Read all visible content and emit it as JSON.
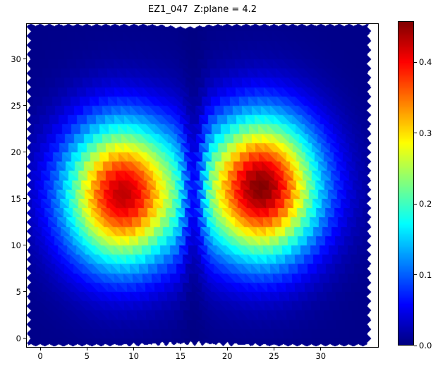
{
  "title": "EZ1_047  Z:plane = 4.2",
  "chart_data": {
    "type": "heatmap",
    "title": "EZ1_047  Z:plane = 4.2",
    "colormap": "jet",
    "mesh_style": "triangulated-flat-shading",
    "vmin": 0.0,
    "vmax": 0.458,
    "xlim": [
      -1.51,
      36.2
    ],
    "ylim": [
      -0.99,
      33.86
    ],
    "xticks": [
      0,
      5,
      10,
      15,
      20,
      25,
      30
    ],
    "yticks": [
      0,
      5,
      10,
      15,
      20,
      25,
      30
    ],
    "grid": false,
    "colorbar": {
      "position": "right",
      "tick_values": [
        0.0,
        0.1,
        0.2,
        0.3,
        0.4
      ],
      "tick_labels": [
        "0.0",
        "0.1",
        "0.2",
        "0.3",
        "0.4"
      ]
    },
    "colors": {
      "low": "#000080",
      "high": "#7f0000",
      "background": "#ffffff"
    },
    "data_region": {
      "x": [
        -1.45,
        35.4
      ],
      "y": [
        -0.87,
        33.82
      ],
      "edge_jag_x": 0.45,
      "edge_jag_y": 0.25,
      "facet_cell": 1.0,
      "facet_shear": 0.35
    },
    "model": {
      "floor": 0.004,
      "blobs": [
        {
          "cx": 8.8,
          "cy": 15.5,
          "sx": 6.0,
          "sy": 7.5,
          "amp": 0.425
        },
        {
          "cx": 23.6,
          "cy": 16.2,
          "sx": 6.0,
          "sy": 7.5,
          "amp": 0.452
        }
      ],
      "seam": {
        "x": 16.4,
        "width": 1.25,
        "depth": 0.7
      }
    },
    "sample_grid": {
      "x": [
        0,
        4,
        8,
        12,
        16,
        20,
        24,
        28,
        32
      ],
      "y": [
        32,
        28,
        24,
        20,
        16,
        12,
        8,
        4,
        0
      ],
      "values": [
        [
          0.004,
          0.006,
          0.007,
          0.007,
          0.005,
          0.008,
          0.009,
          0.007,
          0.005
        ],
        [
          0.007,
          0.018,
          0.03,
          0.025,
          0.009,
          0.031,
          0.042,
          0.026,
          0.009
        ],
        [
          0.018,
          0.066,
          0.12,
          0.096,
          0.026,
          0.115,
          0.157,
          0.094,
          0.026
        ],
        [
          0.038,
          0.16,
          0.295,
          0.236,
          0.056,
          0.257,
          0.352,
          0.208,
          0.053
        ],
        [
          0.053,
          0.227,
          0.42,
          0.333,
          0.074,
          0.332,
          0.454,
          0.268,
          0.068
        ],
        [
          0.044,
          0.184,
          0.34,
          0.269,
          0.058,
          0.245,
          0.333,
          0.197,
          0.051
        ],
        [
          0.022,
          0.086,
          0.158,
          0.125,
          0.028,
          0.104,
          0.14,
          0.084,
          0.023
        ],
        [
          0.009,
          0.025,
          0.044,
          0.035,
          0.01,
          0.028,
          0.036,
          0.023,
          0.009
        ],
        [
          0.005,
          0.007,
          0.01,
          0.009,
          0.005,
          0.007,
          0.008,
          0.006,
          0.005
        ]
      ]
    }
  }
}
